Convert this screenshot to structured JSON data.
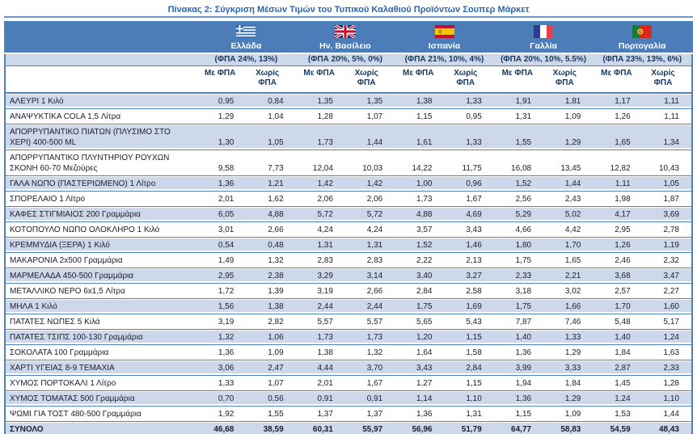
{
  "title": "Πίνακας 2: Σύγκριση Μέσων Τιμών του Τυπικού Καλαθιού Προϊόντων Σουπερ Μάρκετ",
  "colors": {
    "header_band": "#4d7db9",
    "row_stripe": "#cdd9eb",
    "table_border": "#4f81bd",
    "title_text": "#2b66b0",
    "header_text": "#17365d"
  },
  "column_headers": {
    "with_vat": "Με ΦΠΑ",
    "without_vat": "Χωρίς ΦΠΑ"
  },
  "countries": [
    {
      "name": "Ελλάδα",
      "vat_note": "(ΦΠΑ 24%, 13%)",
      "flag_icon": "greece-flag-icon",
      "flag": "greece"
    },
    {
      "name": "Ην. Βασίλειο",
      "vat_note": "(ΦΠΑ 20%, 5%, 0%)",
      "flag_icon": "uk-flag-icon",
      "flag": "uk"
    },
    {
      "name": "Ισπανία",
      "vat_note": "(ΦΠΑ 21%, 10%, 4%)",
      "flag_icon": "spain-flag-icon",
      "flag": "spain"
    },
    {
      "name": "Γαλλία",
      "vat_note": "(ΦΠΑ 20%, 10%, 5.5%)",
      "flag_icon": "france-flag-icon",
      "flag": "france"
    },
    {
      "name": "Πορτογαλία",
      "vat_note": "(ΦΠΑ 23%, 13%, 6%)",
      "flag_icon": "portugal-flag-icon",
      "flag": "portugal"
    }
  ],
  "rows": [
    {
      "product": "ΑΛΕΥΡΙ 1 Κιλό",
      "values": [
        "0,95",
        "0,84",
        "1,35",
        "1,35",
        "1,38",
        "1,33",
        "1,91",
        "1,81",
        "1,17",
        "1,11"
      ]
    },
    {
      "product": "ΑΝΑΨΥΚΤΙΚΑ COLA 1,5 Λίτρα",
      "values": [
        "1,29",
        "1,04",
        "1,28",
        "1,07",
        "1,15",
        "0,95",
        "1,31",
        "1,09",
        "1,26",
        "1,11"
      ]
    },
    {
      "product": "ΑΠΟΡΡΥΠΑΝΤΙΚΟ ΠΙΑΤΩΝ (ΠΛΥΣΙΜΟ ΣΤΟ ΧΕΡΙ) 400-500 ML",
      "values": [
        "1,30",
        "1,05",
        "1,73",
        "1,44",
        "1,61",
        "1,33",
        "1,55",
        "1,29",
        "1,65",
        "1,34"
      ]
    },
    {
      "product": "ΑΠΟΡΡΥΠΑΝΤΙΚΟ ΠΛΥΝΤΗΡΙΟΥ ΡΟΥΧΩΝ ΣΚΟΝΗ 60-70 Μεζούρες",
      "values": [
        "9,58",
        "7,73",
        "12,04",
        "10,03",
        "14,22",
        "11,75",
        "16,08",
        "13,45",
        "12,82",
        "10,43"
      ]
    },
    {
      "product": "ΓΑΛΑ ΝΩΠΟ (ΠΑΣΤΕΡΙΩΜΕΝΟ) 1 Λίτρο",
      "values": [
        "1,36",
        "1,21",
        "1,42",
        "1,42",
        "1,00",
        "0,96",
        "1,52",
        "1,44",
        "1,11",
        "1,05"
      ]
    },
    {
      "product": "ΣΠΟΡΕΛΑΙΟ 1 Λίτρο",
      "values": [
        "2,01",
        "1,62",
        "2,06",
        "2,06",
        "1,73",
        "1,67",
        "2,56",
        "2,43",
        "1,98",
        "1,87"
      ]
    },
    {
      "product": "ΚΑΦΕΣ ΣΤΙΓΜΙΑΙΟΣ 200 Γραμμάρια",
      "values": [
        "6,05",
        "4,88",
        "5,72",
        "5,72",
        "4,88",
        "4,69",
        "5,29",
        "5,02",
        "4,17",
        "3,69"
      ]
    },
    {
      "product": "ΚΟΤΟΠΟΥΛΟ ΝΩΠΟ ΟΛΟΚΛΗΡΟ 1 Κιλό",
      "values": [
        "3,01",
        "2,66",
        "4,24",
        "4,24",
        "3,57",
        "3,43",
        "4,66",
        "4,42",
        "2,95",
        "2,78"
      ]
    },
    {
      "product": "ΚΡΕΜΜΥΔΙΑ (ΞΕΡΑ) 1 Κιλό",
      "values": [
        "0,54",
        "0,48",
        "1,31",
        "1,31",
        "1,52",
        "1,46",
        "1,80",
        "1,70",
        "1,26",
        "1,19"
      ]
    },
    {
      "product": "ΜΑΚΑΡΟΝΙΑ 2x500 Γραμμάρια",
      "values": [
        "1,49",
        "1,32",
        "2,83",
        "2,83",
        "2,22",
        "2,13",
        "1,75",
        "1,65",
        "2,46",
        "2,32"
      ]
    },
    {
      "product": "ΜΑΡΜΕΛΑΔΑ 450-500 Γραμμάρια",
      "values": [
        "2,95",
        "2,38",
        "3,29",
        "3,14",
        "3,40",
        "3,27",
        "2,33",
        "2,21",
        "3,68",
        "3,47"
      ]
    },
    {
      "product": "ΜΕΤΑΛΛΙΚΟ ΝΕΡΟ 6x1,5 Λίτρα",
      "values": [
        "1,72",
        "1,39",
        "3,19",
        "2,66",
        "2,84",
        "2,58",
        "3,18",
        "3,02",
        "2,57",
        "2,27"
      ]
    },
    {
      "product": "ΜΗΛΑ 1 Κιλό",
      "values": [
        "1,56",
        "1,38",
        "2,44",
        "2,44",
        "1,75",
        "1,69",
        "1,75",
        "1,66",
        "1,70",
        "1,60"
      ]
    },
    {
      "product": "ΠΑΤΑΤΕΣ ΝΩΠΕΣ 5 Κιλά",
      "values": [
        "3,19",
        "2,82",
        "5,57",
        "5,57",
        "5,65",
        "5,43",
        "7,87",
        "7,46",
        "5,48",
        "5,17"
      ]
    },
    {
      "product": "ΠΑΤΑΤΕΣ ΤΣΙΠΣ 100-130 Γραμμάρια",
      "values": [
        "1,32",
        "1,06",
        "1,73",
        "1,73",
        "1,20",
        "1,15",
        "1,40",
        "1,33",
        "1,40",
        "1,24"
      ]
    },
    {
      "product": "ΣΟΚΟΛΑΤΑ 100 Γραμμάρια",
      "values": [
        "1,36",
        "1,09",
        "1,38",
        "1,32",
        "1,64",
        "1,58",
        "1,36",
        "1,29",
        "1,84",
        "1,63"
      ]
    },
    {
      "product": "ΧΑΡΤΙ ΥΓΕΙΑΣ 8-9 ΤΕΜΑΧΙΑ",
      "values": [
        "3,06",
        "2,47",
        "4,44",
        "3,70",
        "3,43",
        "2,84",
        "3,99",
        "3,33",
        "2,87",
        "2,33"
      ]
    },
    {
      "product": "ΧΥΜΟΣ ΠΟΡΤΟΚΑΛΙ 1 Λίτρο",
      "values": [
        "1,33",
        "1,07",
        "2,01",
        "1,67",
        "1,27",
        "1,15",
        "1,94",
        "1,84",
        "1,45",
        "1,28"
      ]
    },
    {
      "product": "ΧΥΜΟΣ ΤΟΜΑΤΑΣ 500 Γραμμάρια",
      "values": [
        "0,70",
        "0,56",
        "0,91",
        "0,91",
        "1,14",
        "1,10",
        "1,36",
        "1,29",
        "1,24",
        "1,10"
      ]
    },
    {
      "product": "ΨΩΜΙ ΓΙΑ ΤΟΣΤ 480-500 Γραμμάρια",
      "values": [
        "1,92",
        "1,55",
        "1,37",
        "1,37",
        "1,36",
        "1,31",
        "1,15",
        "1,09",
        "1,53",
        "1,44"
      ]
    }
  ],
  "total": {
    "label": "ΣΥΝΟΛΟ",
    "values": [
      "46,68",
      "38,59",
      "60,31",
      "55,97",
      "56,96",
      "51,79",
      "64,77",
      "58,83",
      "54,59",
      "48,43"
    ]
  }
}
